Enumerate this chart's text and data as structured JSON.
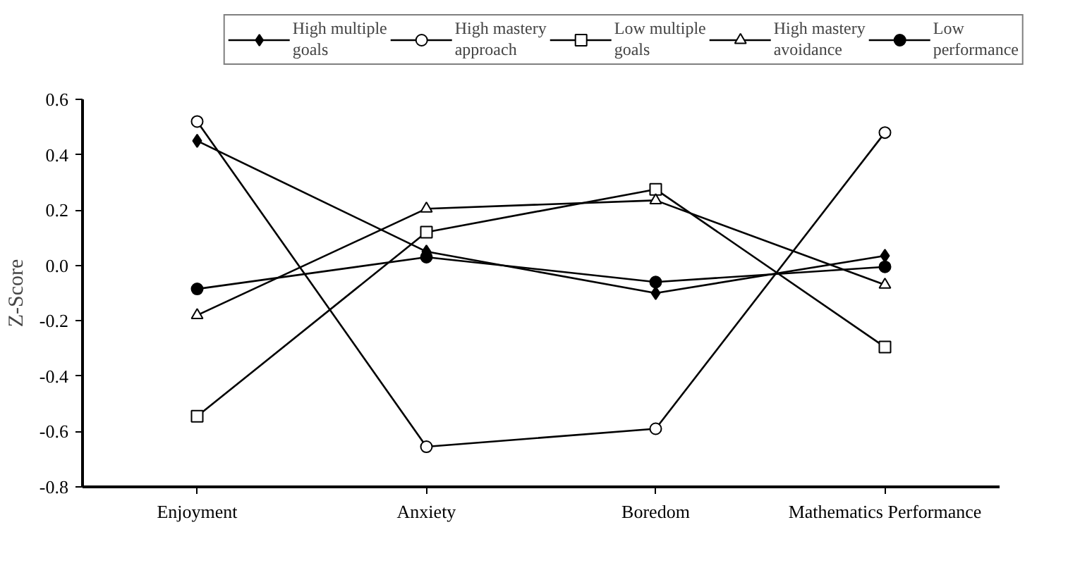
{
  "chart_data": {
    "type": "line",
    "ylabel": "Z-Score",
    "categories": [
      "Enjoyment",
      "Anxiety",
      "Boredom",
      "Mathematics Performance"
    ],
    "ylim": [
      -0.8,
      0.6
    ],
    "yticks": [
      {
        "value": -0.8,
        "label": "-0.8"
      },
      {
        "value": -0.6,
        "label": "-0.6"
      },
      {
        "value": -0.4,
        "label": "-0.4"
      },
      {
        "value": -0.2,
        "label": "-0.2"
      },
      {
        "value": 0,
        "label": "0.0"
      },
      {
        "value": 0.2,
        "label": "0.2"
      },
      {
        "value": 0.4,
        "label": "0.4"
      },
      {
        "value": 0.6,
        "label": "0.6"
      }
    ],
    "grid": false,
    "legend": "top",
    "line_style": "solid",
    "series": [
      {
        "name": "High multiple goals",
        "color": "#000000",
        "marker": "diamond",
        "values": [
          0.45,
          0.05,
          -0.1,
          0.035
        ]
      },
      {
        "name": "High mastery approach",
        "color": "#000000",
        "marker": "circle",
        "values": [
          0.52,
          -0.655,
          -0.59,
          0.48
        ]
      },
      {
        "name": "Low multiple goals",
        "color": "#000000",
        "marker": "square",
        "values": [
          -0.545,
          0.12,
          0.275,
          -0.295
        ]
      },
      {
        "name": "High mastery avoidance",
        "color": "#000000",
        "marker": "triangle",
        "values": [
          -0.18,
          0.205,
          0.235,
          -0.07
        ]
      },
      {
        "name": "Low performance",
        "color": "#000000",
        "marker": "circle_filled",
        "values": [
          -0.085,
          0.03,
          -0.06,
          -0.005
        ]
      }
    ]
  }
}
